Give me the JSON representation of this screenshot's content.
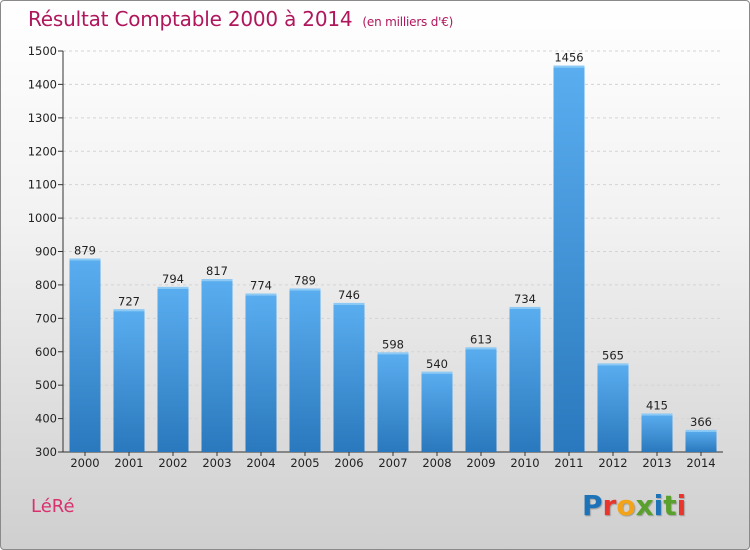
{
  "header": {
    "title": "Résultat Comptable 2000 à 2014",
    "subtitle": "(en milliers d'€)"
  },
  "footer": {
    "commune": "LéRé",
    "logo": "Proxiti",
    "logo_colors": [
      "#1e73b8",
      "#e8362d",
      "#f2a31a",
      "#5aa02c",
      "#1e73b8",
      "#5aa02c",
      "#e8362d"
    ]
  },
  "chart_data": {
    "type": "bar",
    "title": "Résultat Comptable 2000 à 2014",
    "subtitle": "(en milliers d'€)",
    "categories": [
      "2000",
      "2001",
      "2002",
      "2003",
      "2004",
      "2005",
      "2006",
      "2007",
      "2008",
      "2009",
      "2010",
      "2011",
      "2012",
      "2013",
      "2014"
    ],
    "values": [
      879,
      727,
      794,
      817,
      774,
      789,
      746,
      598,
      540,
      613,
      734,
      1456,
      565,
      415,
      366
    ],
    "ylim": [
      300,
      1500
    ],
    "yticks": [
      300,
      400,
      500,
      600,
      700,
      800,
      900,
      1000,
      1100,
      1200,
      1300,
      1400,
      1500
    ],
    "grid": true,
    "bar_color": "#3f93d6"
  }
}
